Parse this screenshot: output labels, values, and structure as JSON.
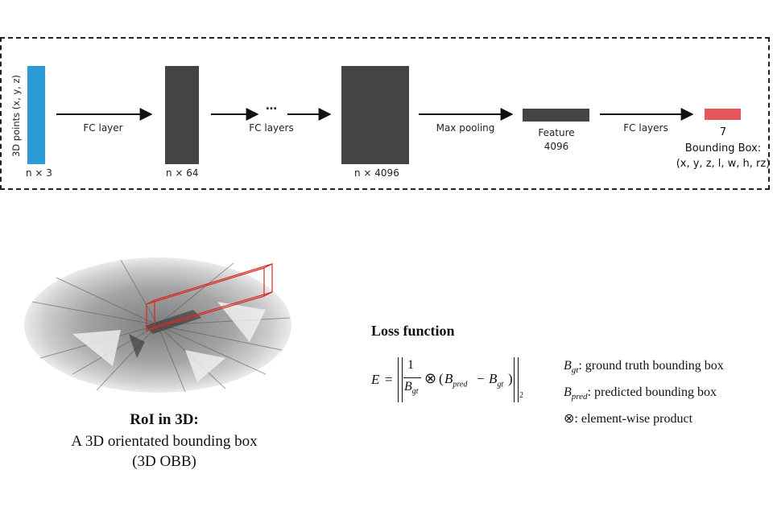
{
  "network": {
    "input_axis_label": "3D points (x, y, z)",
    "input_size": "n × 3",
    "arrow1_label": "FC layer",
    "layer1_size": "n × 64",
    "ellipsis": "…",
    "arrow2_label": "FC layers",
    "layer2_size": "n × 4096",
    "arrow3_label": "Max pooling",
    "feature_label": "Feature",
    "feature_size": "4096",
    "arrow4_label": "FC layers",
    "output_size": "7",
    "output_label": "Bounding Box:",
    "output_params": "(x, y, z, l, w, h, rz)"
  },
  "colors": {
    "input_block": "#2b9bd6",
    "layer_block": "#444444",
    "output_block": "#e5575c",
    "roi_box": "#d62a2a"
  },
  "roi": {
    "title": "RoI in 3D:",
    "line1": "A 3D orientated bounding box",
    "line2": "(3D OBB)"
  },
  "loss": {
    "title": "Loss function",
    "eq_lhs": "E",
    "eq_equals": "=",
    "eq_one": "1",
    "eq_bgt": "B",
    "eq_gt_sub": "gt",
    "eq_otimes": "⊗",
    "eq_open": "(",
    "eq_bpred": "B",
    "eq_pred_sub": "pred",
    "eq_minus": "−",
    "eq_bgt2": "B",
    "eq_gt_sub2": "gt",
    "eq_close": ")",
    "eq_norm_sub": "2"
  },
  "legend": [
    {
      "symbol": "B",
      "sub": "gt",
      "text": ": ground truth bounding box"
    },
    {
      "symbol": "B",
      "sub": "pred",
      "text": ": predicted bounding box"
    },
    {
      "symbol": "⊗",
      "sub": "",
      "text": ": element-wise product"
    }
  ]
}
